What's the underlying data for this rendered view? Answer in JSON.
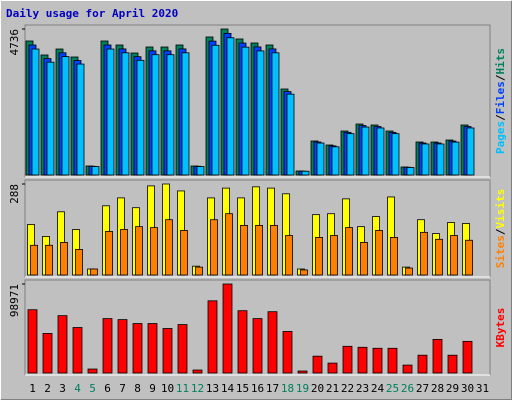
{
  "chart_data": {
    "type": "bar",
    "title": "Daily usage for April 2020",
    "legend_separator": "/",
    "categories": [
      "1",
      "2",
      "3",
      "4",
      "5",
      "6",
      "7",
      "8",
      "9",
      "10",
      "11",
      "12",
      "13",
      "14",
      "15",
      "16",
      "17",
      "18",
      "19",
      "20",
      "21",
      "22",
      "23",
      "24",
      "25",
      "26",
      "27",
      "28",
      "29",
      "30",
      "31"
    ],
    "category_colors": [
      "#000000",
      "#000000",
      "#000000",
      "#00805c",
      "#00805c",
      "#000000",
      "#000000",
      "#000000",
      "#000000",
      "#000000",
      "#00805c",
      "#00805c",
      "#000000",
      "#000000",
      "#000000",
      "#000000",
      "#000000",
      "#00805c",
      "#00805c",
      "#000000",
      "#000000",
      "#000000",
      "#000000",
      "#000000",
      "#00805c",
      "#00805c",
      "#000000",
      "#000000",
      "#000000",
      "#000000",
      "#000000"
    ],
    "panels": [
      {
        "ylim": [
          0,
          4736
        ],
        "yticks": [
          4736
        ],
        "series": [
          {
            "name": "Hits",
            "color": "#00805c",
            "values": [
              4347,
              3893,
              4087,
              3828,
              292,
              4347,
              4217,
              3957,
              4152,
              4152,
              4217,
              292,
              4477,
              4736,
              4412,
              4282,
              4217,
              2790,
              130,
              1103,
              973,
              1427,
              1654,
              1622,
              1427,
              260,
              1070,
              1070,
              1135,
              1622,
              null
            ]
          },
          {
            "name": "Files",
            "color": "#0040ff",
            "values": [
              4217,
              3776,
              3964,
              3713,
              283,
              4217,
              4090,
              3838,
              4027,
              4027,
              4090,
              283,
              4343,
              4594,
              4280,
              4154,
              4090,
              2706,
              126,
              1070,
              944,
              1384,
              1604,
              1573,
              1384,
              252,
              1038,
              1038,
              1101,
              1573,
              null
            ]
          },
          {
            "name": "Pages",
            "color": "#00c0ff",
            "values": [
              4086,
              3659,
              3842,
              3598,
              274,
              4086,
              3964,
              3720,
              3903,
              3903,
              3964,
              274,
              4208,
              4452,
              4147,
              4025,
              3964,
              2623,
              122,
              1037,
              915,
              1341,
              1555,
              1525,
              1341,
              244,
              1006,
              1006,
              1067,
              1525,
              null
            ]
          }
        ]
      },
      {
        "ylim": [
          0,
          288
        ],
        "yticks": [
          288
        ],
        "series": [
          {
            "name": "Visits",
            "color": "#ffff00",
            "values": [
              160,
              122,
              200,
              144,
              19,
              219,
              244,
              213,
              282,
              288,
              266,
              28,
              244,
              275,
              244,
              279,
              275,
              257,
              19,
              191,
              194,
              241,
              153,
              185,
              247,
              25,
              175,
              131,
              166,
              163,
              null
            ]
          },
          {
            "name": "Sites",
            "color": "#ff8000",
            "values": [
              94,
              94,
              103,
              81,
              19,
              138,
              144,
              153,
              150,
              175,
              141,
              25,
              175,
              194,
              157,
              157,
              157,
              125,
              16,
              119,
              125,
              150,
              103,
              141,
              119,
              22,
              135,
              113,
              125,
              110,
              null
            ]
          }
        ]
      },
      {
        "ylim": [
          0,
          98971
        ],
        "yticks": [
          98971
        ],
        "series": [
          {
            "name": "KBytes",
            "color": "#ff0000",
            "values": [
              70379,
              43988,
              63782,
              50586,
              4399,
              60483,
              59382,
              54985,
              54985,
              49485,
              53885,
              3299,
              80278,
              98971,
              69280,
              60483,
              68181,
              46187,
              2199,
              18695,
              10997,
              29692,
              28592,
              27492,
              27492,
              8798,
              19794,
              37389,
              19794,
              35190,
              null
            ]
          }
        ]
      }
    ]
  }
}
